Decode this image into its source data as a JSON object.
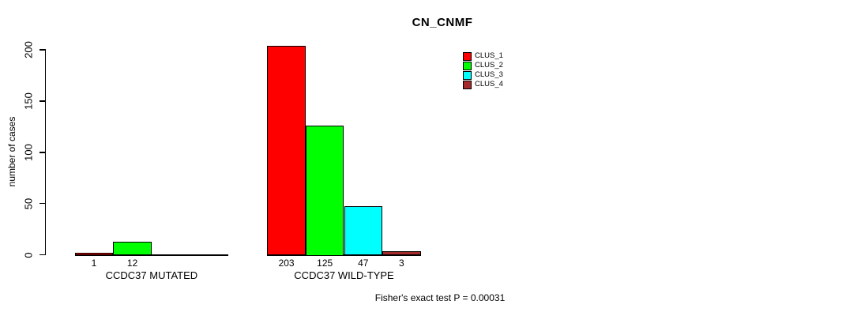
{
  "chart_data": {
    "type": "bar",
    "title": "CN_CNMF",
    "ylabel": "number of cases",
    "ylim": [
      0,
      200
    ],
    "yticks": [
      0,
      50,
      100,
      150,
      200
    ],
    "grid": false,
    "legend_position": "top-right",
    "series": [
      {
        "name": "CLUS_1",
        "color": "#FF0000"
      },
      {
        "name": "CLUS_2",
        "color": "#00FF00"
      },
      {
        "name": "CLUS_3",
        "color": "#00FFFF"
      },
      {
        "name": "CLUS_4",
        "color": "#A52A2A"
      }
    ],
    "groups": [
      {
        "label": "CCDC37 MUTATED",
        "values": [
          1,
          12,
          0,
          0
        ],
        "value_labels": [
          "1",
          "12",
          "",
          ""
        ]
      },
      {
        "label": "CCDC37 WILD-TYPE",
        "values": [
          203,
          125,
          47,
          3
        ],
        "value_labels": [
          "203",
          "125",
          "47",
          "3"
        ]
      }
    ],
    "annotation": "Fisher's exact test P = 0.00031",
    "axis_color": "#000000",
    "background_color": "#FFFFFF"
  }
}
